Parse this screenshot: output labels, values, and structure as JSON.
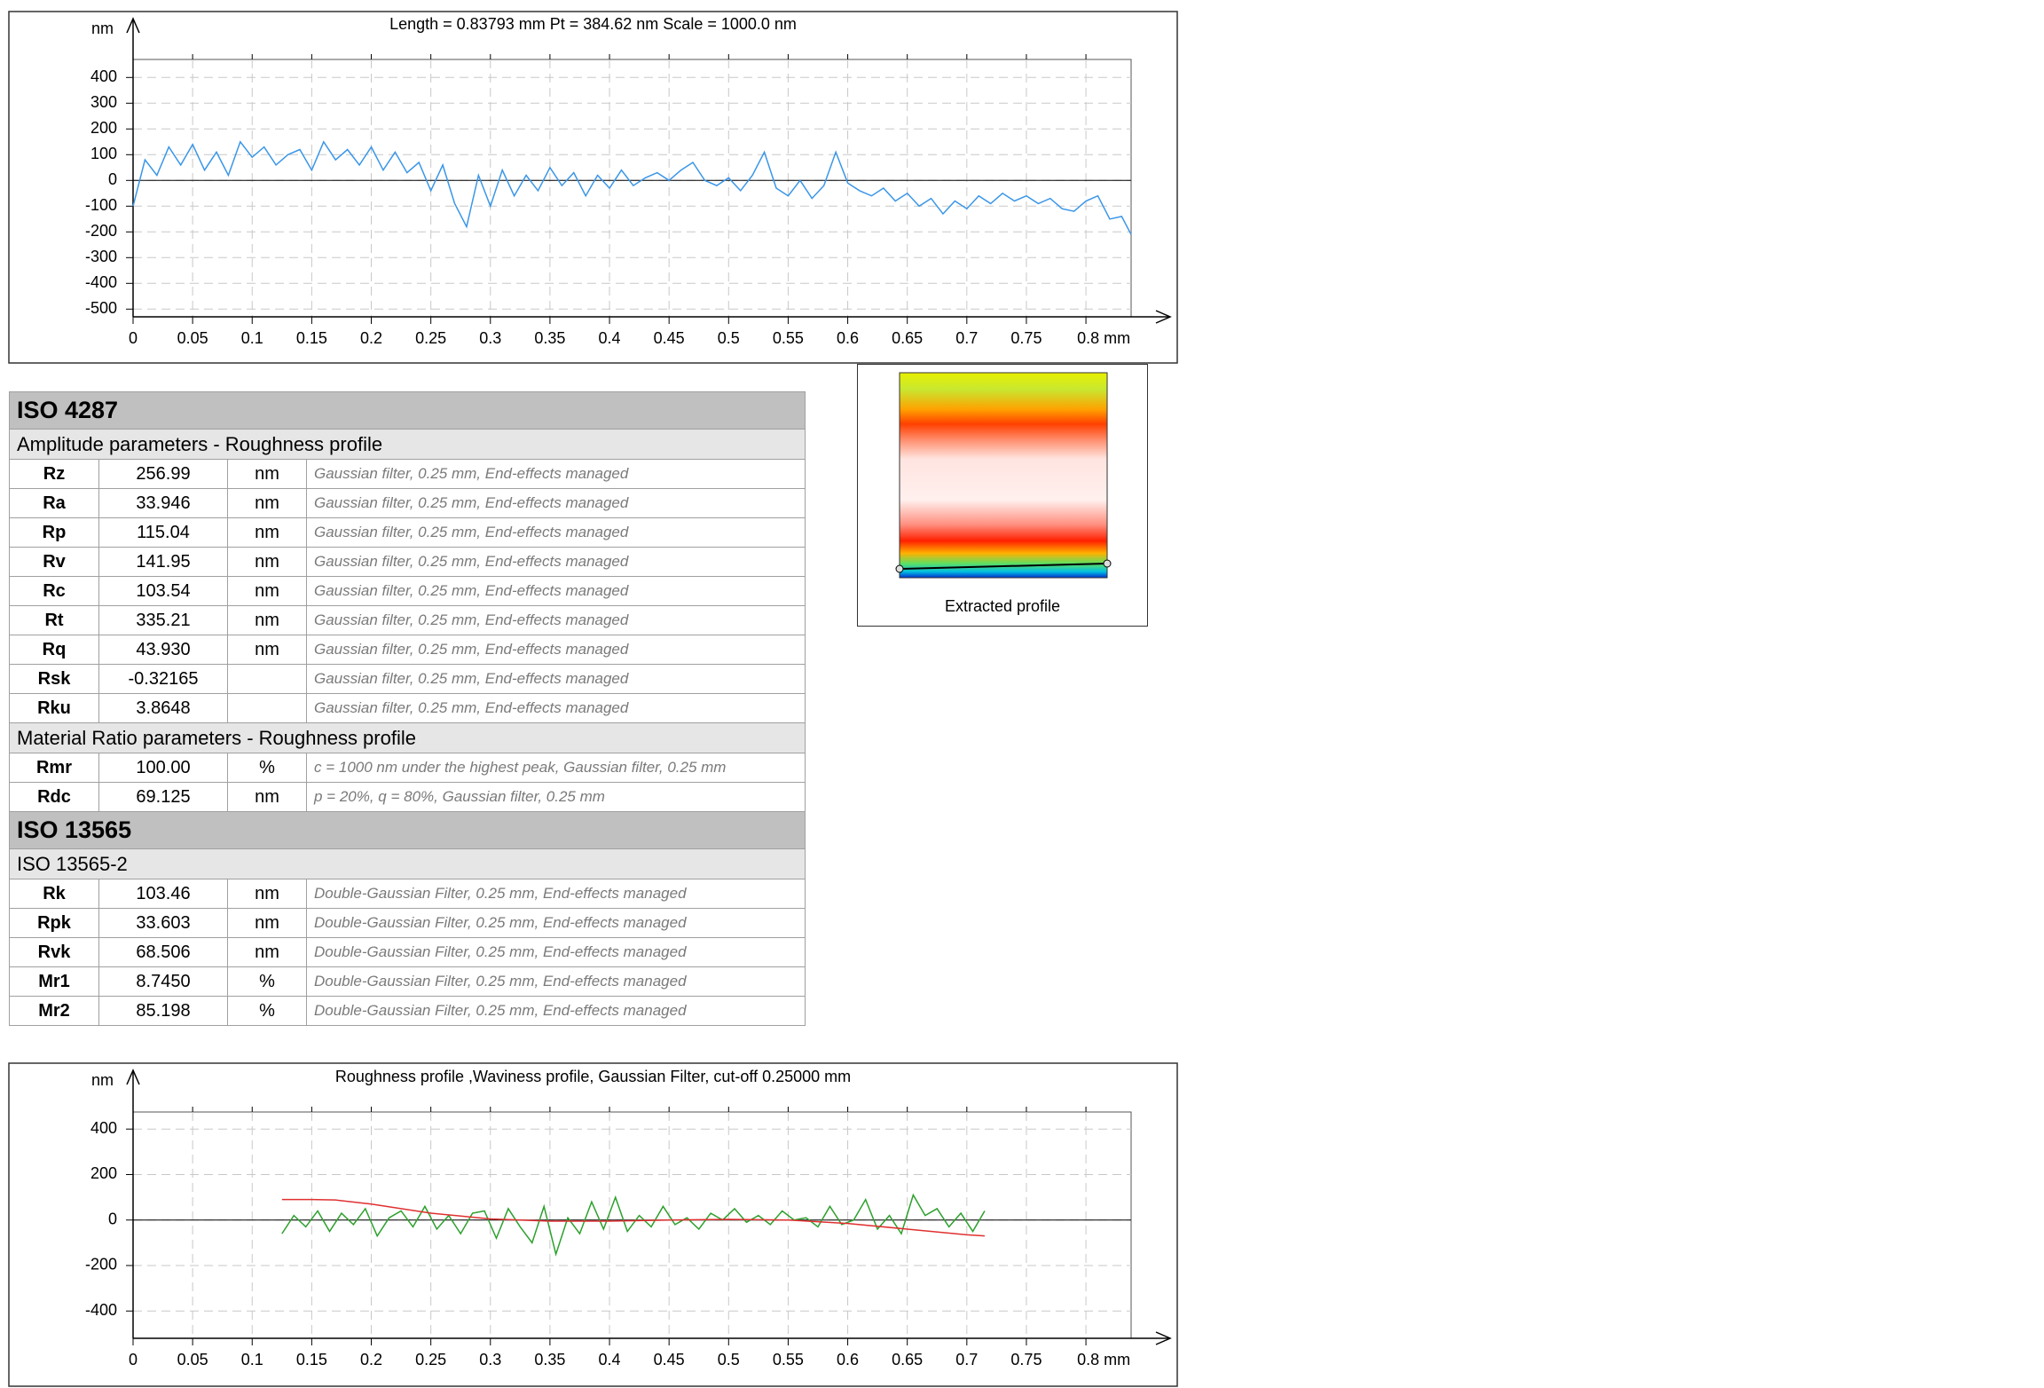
{
  "chart_data": [
    {
      "type": "line",
      "title": "Length = 0.83793 mm  Pt = 384.62 nm  Scale = 1000.0 nm",
      "y_label": "nm",
      "xlim": [
        0,
        0.83793
      ],
      "ylim": [
        -530,
        470
      ],
      "xticks": [
        0,
        0.05,
        0.1,
        0.15,
        0.2,
        0.25,
        0.3,
        0.35,
        0.4,
        0.45,
        0.5,
        0.55,
        0.6,
        0.65,
        0.7,
        0.75,
        {
          "value": 0.8,
          "label": "0.8 mm"
        }
      ],
      "yticks": [
        -500,
        -400,
        -300,
        -200,
        -100,
        0,
        100,
        200,
        300,
        400
      ],
      "grid": true,
      "series": [
        {
          "color": "#3a96e8",
          "x": [
            0,
            0.01,
            0.02,
            0.03,
            0.04,
            0.05,
            0.06,
            0.07,
            0.08,
            0.09,
            0.1,
            0.11,
            0.12,
            0.13,
            0.14,
            0.15,
            0.16,
            0.17,
            0.18,
            0.19,
            0.2,
            0.21,
            0.22,
            0.23,
            0.24,
            0.25,
            0.26,
            0.27,
            0.28,
            0.29,
            0.3,
            0.31,
            0.32,
            0.33,
            0.34,
            0.35,
            0.36,
            0.37,
            0.38,
            0.39,
            0.4,
            0.41,
            0.42,
            0.43,
            0.44,
            0.45,
            0.46,
            0.47,
            0.48,
            0.49,
            0.5,
            0.51,
            0.52,
            0.53,
            0.54,
            0.55,
            0.56,
            0.57,
            0.58,
            0.59,
            0.6,
            0.61,
            0.62,
            0.63,
            0.64,
            0.65,
            0.66,
            0.67,
            0.68,
            0.69,
            0.7,
            0.71,
            0.72,
            0.73,
            0.74,
            0.75,
            0.76,
            0.77,
            0.78,
            0.79,
            0.8,
            0.81,
            0.82,
            0.83,
            0.83793
          ],
          "values": [
            -100,
            80,
            20,
            130,
            60,
            140,
            40,
            110,
            20,
            150,
            90,
            130,
            60,
            100,
            120,
            40,
            150,
            80,
            120,
            60,
            130,
            40,
            110,
            30,
            70,
            -40,
            60,
            -90,
            -180,
            20,
            -100,
            40,
            -60,
            20,
            -40,
            50,
            -20,
            30,
            -60,
            20,
            -30,
            40,
            -20,
            10,
            30,
            0,
            40,
            70,
            0,
            -20,
            10,
            -40,
            20,
            110,
            -30,
            -60,
            0,
            -70,
            -20,
            110,
            -10,
            -40,
            -60,
            -30,
            -80,
            -50,
            -100,
            -70,
            -130,
            -80,
            -110,
            -60,
            -90,
            -50,
            -80,
            -60,
            -90,
            -70,
            -110,
            -120,
            -80,
            -60,
            -150,
            -140,
            -210
          ]
        }
      ]
    },
    {
      "type": "line",
      "title": "Roughness profile ,Waviness profile, Gaussian Filter, cut-off 0.25000 mm",
      "y_label": "nm",
      "xlim": [
        0,
        0.83793
      ],
      "ylim": [
        -520,
        475
      ],
      "xticks": [
        0,
        0.05,
        0.1,
        0.15,
        0.2,
        0.25,
        0.3,
        0.35,
        0.4,
        0.45,
        0.5,
        0.55,
        0.6,
        0.65,
        0.7,
        0.75,
        {
          "value": 0.8,
          "label": "0.8 mm"
        }
      ],
      "yticks": [
        -400,
        -200,
        0,
        200,
        400
      ],
      "grid": true,
      "series": [
        {
          "color": "#2ca02c",
          "x": [
            0.125,
            0.135,
            0.145,
            0.155,
            0.165,
            0.175,
            0.185,
            0.195,
            0.205,
            0.215,
            0.225,
            0.235,
            0.245,
            0.255,
            0.265,
            0.275,
            0.285,
            0.295,
            0.305,
            0.315,
            0.325,
            0.335,
            0.345,
            0.355,
            0.365,
            0.375,
            0.385,
            0.395,
            0.405,
            0.415,
            0.425,
            0.435,
            0.445,
            0.455,
            0.465,
            0.475,
            0.485,
            0.495,
            0.505,
            0.515,
            0.525,
            0.535,
            0.545,
            0.555,
            0.565,
            0.575,
            0.585,
            0.595,
            0.605,
            0.615,
            0.625,
            0.635,
            0.645,
            0.655,
            0.665,
            0.675,
            0.685,
            0.695,
            0.705,
            0.715
          ],
          "values": [
            -60,
            20,
            -30,
            40,
            -50,
            30,
            -20,
            50,
            -70,
            10,
            40,
            -30,
            60,
            -40,
            20,
            -60,
            30,
            40,
            -80,
            50,
            -30,
            -100,
            60,
            -150,
            10,
            -60,
            80,
            -40,
            100,
            -50,
            20,
            -30,
            60,
            -20,
            10,
            -40,
            30,
            0,
            50,
            -10,
            20,
            -20,
            40,
            0,
            10,
            -30,
            60,
            -20,
            0,
            90,
            -40,
            20,
            -60,
            110,
            20,
            50,
            -30,
            30,
            -50,
            40
          ]
        },
        {
          "color": "#e03030",
          "x": [
            0.125,
            0.15,
            0.17,
            0.2,
            0.25,
            0.3,
            0.35,
            0.4,
            0.45,
            0.5,
            0.55,
            0.6,
            0.65,
            0.7,
            0.715
          ],
          "values": [
            90,
            90,
            88,
            70,
            30,
            5,
            -5,
            -5,
            0,
            3,
            0,
            -15,
            -40,
            -65,
            -70
          ]
        }
      ]
    }
  ],
  "table": {
    "sections": [
      {
        "title": "ISO 4287",
        "groups": [
          {
            "title": "Amplitude parameters - Roughness profile",
            "rows": [
              [
                "Rz",
                "256.99",
                "nm",
                "Gaussian filter, 0.25 mm, End-effects managed"
              ],
              [
                "Ra",
                "33.946",
                "nm",
                "Gaussian filter, 0.25 mm, End-effects managed"
              ],
              [
                "Rp",
                "115.04",
                "nm",
                "Gaussian filter, 0.25 mm, End-effects managed"
              ],
              [
                "Rv",
                "141.95",
                "nm",
                "Gaussian filter, 0.25 mm, End-effects managed"
              ],
              [
                "Rc",
                "103.54",
                "nm",
                "Gaussian filter, 0.25 mm, End-effects managed"
              ],
              [
                "Rt",
                "335.21",
                "nm",
                "Gaussian filter, 0.25 mm, End-effects managed"
              ],
              [
                "Rq",
                "43.930",
                "nm",
                "Gaussian filter, 0.25 mm, End-effects managed"
              ],
              [
                "Rsk",
                "-0.32165",
                null,
                "Gaussian filter, 0.25 mm, End-effects managed"
              ],
              [
                "Rku",
                "3.8648",
                null,
                "Gaussian filter, 0.25 mm, End-effects managed"
              ]
            ]
          },
          {
            "title": "Material Ratio parameters - Roughness profile",
            "rows": [
              [
                "Rmr",
                "100.00",
                "%",
                "c = 1000 nm under the highest peak, Gaussian filter, 0.25 mm"
              ],
              [
                "Rdc",
                "69.125",
                "nm",
                "p = 20%, q = 80%, Gaussian filter, 0.25 mm"
              ]
            ]
          }
        ]
      },
      {
        "title": "ISO 13565",
        "groups": [
          {
            "title": "ISO 13565-2",
            "rows": [
              [
                "Rk",
                "103.46",
                "nm",
                "Double-Gaussian Filter, 0.25 mm, End-effects managed"
              ],
              [
                "Rpk",
                "33.603",
                "nm",
                "Double-Gaussian Filter, 0.25 mm, End-effects managed"
              ],
              [
                "Rvk",
                "68.506",
                "nm",
                "Double-Gaussian Filter, 0.25 mm, End-effects managed"
              ],
              [
                "Mr1",
                "8.7450",
                "%",
                "Double-Gaussian Filter, 0.25 mm, End-effects managed"
              ],
              [
                "Mr2",
                "85.198",
                "%",
                "Double-Gaussian Filter, 0.25 mm, End-effects managed"
              ]
            ]
          }
        ]
      }
    ]
  },
  "image_caption": "Extracted profile"
}
